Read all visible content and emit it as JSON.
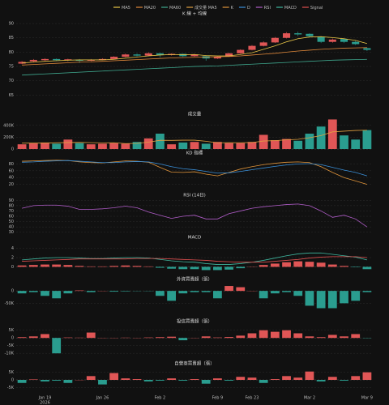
{
  "chart_data": [
    {
      "type": "candlestick",
      "title": "K 線 + 均線",
      "categories": [
        null,
        null,
        "Jan 19",
        null,
        null,
        null,
        null,
        "Jan 26",
        null,
        null,
        null,
        null,
        "Feb 2",
        null,
        null,
        null,
        null,
        "Feb 9",
        null,
        null,
        "Feb 23",
        null,
        null,
        null,
        null,
        "Mar 2",
        null,
        null,
        null,
        null,
        "Mar 9"
      ],
      "year_label": "2026",
      "up_color": "#e05656",
      "down_color": "#2a9d8f",
      "open": [
        76.0,
        76.8,
        77.2,
        77.6,
        77.2,
        77.4,
        77.0,
        77.4,
        77.6,
        78.4,
        79.2,
        78.8,
        79.6,
        79.0,
        79.4,
        78.6,
        78.6,
        77.8,
        78.4,
        79.6,
        80.8,
        82.2,
        83.4,
        85.0,
        86.6,
        86.4,
        85.4,
        83.6,
        84.6,
        83.6,
        81.4
      ],
      "high": [
        76.9,
        77.6,
        77.9,
        77.8,
        77.7,
        77.6,
        77.6,
        77.9,
        78.6,
        79.5,
        79.6,
        80.0,
        79.8,
        79.6,
        79.5,
        79.4,
        78.8,
        78.6,
        79.8,
        81.0,
        82.5,
        83.8,
        85.3,
        87.0,
        87.2,
        86.6,
        85.6,
        84.8,
        84.8,
        84.0,
        81.6
      ],
      "low": [
        75.8,
        76.5,
        76.9,
        76.9,
        76.8,
        76.2,
        76.8,
        77.2,
        77.5,
        78.2,
        78.5,
        78.6,
        78.2,
        78.8,
        78.3,
        78.4,
        77.0,
        77.6,
        78.3,
        79.4,
        80.6,
        82.0,
        83.2,
        84.8,
        85.6,
        85.2,
        83.2,
        83.3,
        83.2,
        82.5,
        80.4
      ],
      "close": [
        76.6,
        77.3,
        77.6,
        77.2,
        77.5,
        77.0,
        77.4,
        77.6,
        78.4,
        79.2,
        78.8,
        79.6,
        79.0,
        79.4,
        78.6,
        79.2,
        77.8,
        78.4,
        79.6,
        80.8,
        82.2,
        83.4,
        85.0,
        86.6,
        86.2,
        85.6,
        83.6,
        84.4,
        83.6,
        82.8,
        80.8
      ],
      "series": [
        {
          "name": "MA5",
          "color": "#e8c547",
          "values": [
            76.2,
            76.5,
            76.8,
            77.0,
            77.2,
            77.3,
            77.3,
            77.3,
            77.5,
            77.9,
            78.3,
            78.7,
            79.0,
            79.2,
            79.1,
            79.2,
            78.8,
            78.7,
            78.7,
            79.2,
            79.8,
            81.0,
            82.2,
            83.6,
            84.7,
            85.3,
            85.4,
            85.1,
            84.7,
            84.1,
            83.0
          ]
        },
        {
          "name": "MA20",
          "color": "#e0883a",
          "values": [
            75.5,
            75.7,
            75.9,
            76.1,
            76.3,
            76.5,
            76.6,
            76.8,
            77.0,
            77.2,
            77.4,
            77.6,
            77.8,
            78.0,
            78.1,
            78.2,
            78.3,
            78.4,
            78.5,
            78.7,
            79.0,
            79.3,
            79.6,
            80.0,
            80.4,
            80.7,
            81.0,
            81.2,
            81.4,
            81.5,
            81.6
          ]
        },
        {
          "name": "MA60",
          "color": "#3fa88e",
          "values": [
            72.0,
            72.2,
            72.4,
            72.6,
            72.8,
            73.0,
            73.2,
            73.4,
            73.6,
            73.8,
            74.0,
            74.2,
            74.4,
            74.6,
            74.8,
            75.0,
            75.1,
            75.2,
            75.4,
            75.6,
            75.8,
            76.0,
            76.2,
            76.4,
            76.6,
            76.8,
            77.0,
            77.2,
            77.3,
            77.4,
            77.5
          ]
        }
      ],
      "ylim": [
        62,
        92
      ],
      "yticks": [
        65,
        70,
        75,
        80,
        85,
        90
      ]
    },
    {
      "type": "bar",
      "title": "成交量",
      "values": [
        80000,
        100000,
        110000,
        90000,
        160000,
        100000,
        80000,
        90000,
        100000,
        90000,
        120000,
        180000,
        260000,
        80000,
        110000,
        120000,
        90000,
        120000,
        100000,
        100000,
        120000,
        240000,
        150000,
        170000,
        140000,
        260000,
        380000,
        500000,
        230000,
        160000,
        320000
      ],
      "series": [
        {
          "name": "成交量 MA5",
          "color": "#e0a040",
          "values": [
            100000,
            100000,
            100000,
            105000,
            110000,
            112000,
            108000,
            104000,
            106000,
            92000,
            96000,
            116000,
            148000,
            146000,
            150000,
            150000,
            132000,
            104000,
            108000,
            106000,
            110000,
            136000,
            142000,
            156000,
            164000,
            192000,
            228000,
            290000,
            302000,
            314000,
            318000
          ]
        }
      ],
      "ylim": [
        0,
        520000
      ],
      "yticks": [
        {
          "value": 0,
          "label": "0"
        },
        {
          "value": 200000,
          "label": "200K"
        },
        {
          "value": 400000,
          "label": "400K"
        }
      ]
    },
    {
      "type": "line",
      "title": "KD 指標",
      "series": [
        {
          "name": "K",
          "color": "#e0943a",
          "values": [
            88,
            89,
            90,
            91,
            90,
            86,
            84,
            83,
            86,
            89,
            88,
            85,
            70,
            56,
            55,
            57,
            50,
            45,
            55,
            65,
            72,
            78,
            82,
            85,
            86,
            84,
            72,
            55,
            40,
            30,
            20
          ]
        },
        {
          "name": "D",
          "color": "#3a8fd8",
          "values": [
            85,
            86,
            88,
            89,
            90,
            88,
            86,
            84,
            84,
            86,
            87,
            86,
            80,
            72,
            66,
            63,
            58,
            53,
            54,
            58,
            63,
            68,
            73,
            77,
            80,
            81,
            78,
            70,
            62,
            55,
            45
          ]
        }
      ],
      "ylim": [
        0,
        100
      ],
      "yticks": [
        20,
        40,
        60,
        80
      ]
    },
    {
      "type": "line",
      "title": "RSI (14日)",
      "series": [
        {
          "name": "RSI",
          "color": "#b05cc8",
          "values": [
            75,
            80,
            81,
            81,
            79,
            73,
            73,
            74,
            76,
            79,
            76,
            68,
            62,
            56,
            60,
            62,
            55,
            55,
            65,
            70,
            75,
            78,
            80,
            82,
            83,
            80,
            70,
            58,
            62,
            55,
            40
          ]
        }
      ],
      "ylim": [
        25,
        92
      ],
      "yticks": [
        30,
        40,
        50,
        60,
        70,
        80,
        90
      ]
    },
    {
      "type": "macd",
      "title": "MACD",
      "values": [
        0.3,
        0.4,
        0.5,
        0.5,
        0.4,
        0.2,
        0.1,
        0.1,
        0.2,
        0.3,
        0.2,
        0.1,
        -0.2,
        -0.4,
        -0.5,
        -0.5,
        -0.7,
        -0.7,
        -0.6,
        -0.3,
        0,
        0.4,
        0.7,
        1.0,
        1.2,
        1.1,
        0.9,
        0.5,
        0.2,
        -0.1,
        -0.5
      ],
      "pos_color": "#e05656",
      "neg_color": "#2a9d8f",
      "series": [
        {
          "name": "MACD",
          "color": "#3fb8a0",
          "values": [
            1.5,
            1.7,
            1.9,
            2.0,
            2.0,
            1.9,
            1.8,
            1.8,
            1.9,
            2.0,
            2.0,
            1.9,
            1.6,
            1.3,
            1.1,
            1.0,
            0.7,
            0.5,
            0.5,
            0.7,
            1.0,
            1.4,
            1.9,
            2.4,
            2.8,
            3.0,
            3.0,
            2.7,
            2.4,
            2.1,
            1.5
          ]
        },
        {
          "name": "Signal",
          "color": "#e05050",
          "values": [
            1.2,
            1.3,
            1.4,
            1.5,
            1.6,
            1.7,
            1.7,
            1.7,
            1.7,
            1.7,
            1.8,
            1.8,
            1.8,
            1.7,
            1.6,
            1.5,
            1.4,
            1.2,
            1.1,
            1.0,
            1.0,
            1.0,
            1.2,
            1.4,
            1.6,
            1.9,
            2.1,
            2.2,
            2.2,
            2.2,
            2.0
          ]
        }
      ],
      "ylim": [
        -1.5,
        5.5
      ],
      "yticks": [
        0,
        2,
        4
      ]
    },
    {
      "type": "bar",
      "title": "外資買賣超（張）",
      "values": [
        -10000,
        -5000,
        -20000,
        -30000,
        -10000,
        2000,
        -5000,
        0,
        -3000,
        -2000,
        -1000,
        -1000,
        -20000,
        -40000,
        -10000,
        -5000,
        -5000,
        -30000,
        20000,
        15000,
        0,
        -30000,
        -10000,
        -5000,
        -20000,
        -60000,
        -70000,
        -70000,
        -50000,
        -40000,
        -5000
      ],
      "pos_color": "#e05656",
      "neg_color": "#2a9d8f",
      "ylim": [
        -75000,
        30000
      ],
      "yticks": [
        {
          "value": 0,
          "label": "0"
        },
        {
          "value": -50000,
          "label": "-50K"
        }
      ]
    },
    {
      "type": "bar",
      "title": "投信買賣超（張）",
      "values": [
        500,
        1000,
        2500,
        -10000,
        300,
        200,
        3500,
        100,
        0,
        200,
        0,
        300,
        500,
        800,
        -1500,
        0,
        1000,
        300,
        600,
        1500,
        3000,
        5000,
        4000,
        5000,
        3000,
        1000,
        500,
        2000,
        1000,
        2500,
        -200
      ],
      "pos_color": "#e05656",
      "neg_color": "#2a9d8f",
      "ylim": [
        -12000,
        8000
      ],
      "yticks": [
        {
          "value": 5000,
          "label": "5K"
        },
        {
          "value": 0,
          "label": "0"
        },
        {
          "value": -5000,
          "label": "-5K"
        },
        {
          "value": -10000,
          "label": "-10K"
        }
      ]
    },
    {
      "type": "bar",
      "title": "自營商買賣超（張）",
      "values": [
        -2000,
        300,
        -1000,
        -500,
        -2000,
        0,
        2500,
        -3000,
        4500,
        1000,
        500,
        -1000,
        -500,
        1000,
        -500,
        500,
        -2500,
        1000,
        -500,
        2000,
        1500,
        -2000,
        500,
        2500,
        1500,
        5500,
        -1000,
        2000,
        -500,
        2500,
        5000
      ],
      "pos_color": "#e05656",
      "neg_color": "#2a9d8f",
      "ylim": [
        -8000,
        8000
      ],
      "yticks": [
        {
          "value": 5000,
          "label": "5K"
        },
        {
          "value": 0,
          "label": "0"
        },
        {
          "value": -5000,
          "label": "-5K"
        }
      ]
    }
  ]
}
